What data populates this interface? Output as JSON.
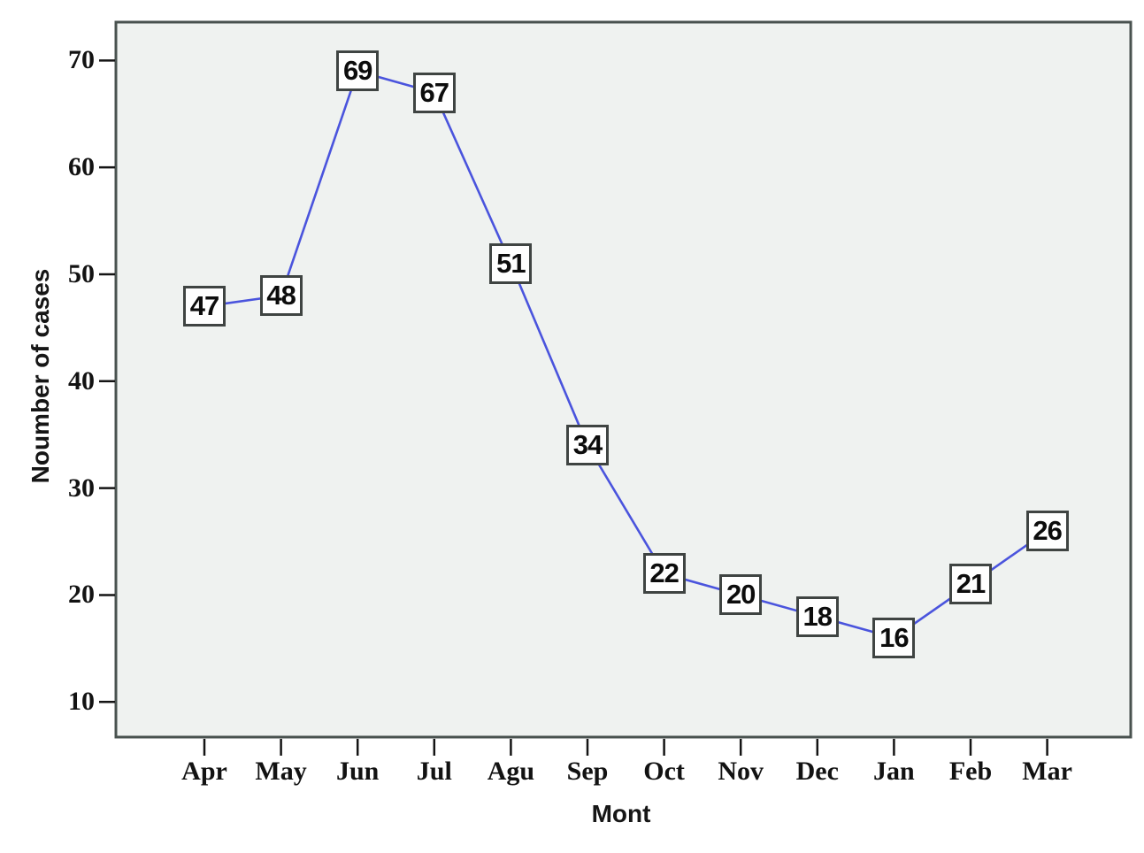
{
  "chart_data": {
    "type": "line",
    "title": "",
    "xlabel": "Mont",
    "ylabel": "Noumber of cases",
    "categories": [
      "Apr",
      "May",
      "Jun",
      "Jul",
      "Agu",
      "Sep",
      "Oct",
      "Nov",
      "Dec",
      "Jan",
      "Feb",
      "Mar"
    ],
    "values": [
      47,
      48,
      69,
      67,
      51,
      34,
      22,
      20,
      18,
      16,
      21,
      26
    ],
    "y_ticks": [
      10,
      20,
      30,
      40,
      50,
      60,
      70
    ],
    "ylim": [
      6.7,
      73.5
    ],
    "grid": false,
    "legend": "none",
    "data_labels": {
      "shown": true,
      "style": "boxed-square"
    },
    "colors": {
      "line": "#4a54dd",
      "plot_background": "#eff2f0",
      "plot_border": "#49524f",
      "tick": "#141414",
      "label_box_fill": "#fefefe",
      "label_box_border": "#3f4442",
      "text": "#0c0c0c"
    }
  }
}
